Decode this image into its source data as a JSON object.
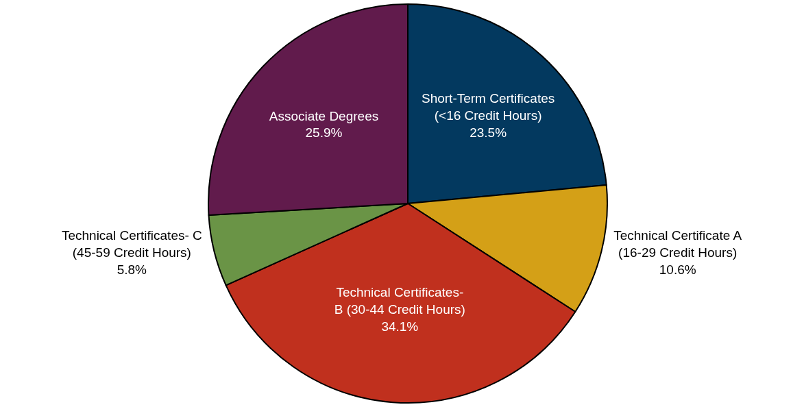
{
  "chart_data": {
    "type": "pie",
    "categories": [
      "Short-Term Certificates\n(<16 Credit Hours)",
      "Technical Certificate A\n(16-29 Credit Hours)",
      "Technical Certificates-\nB (30-44 Credit Hours)",
      "Technical Certificates- C\n(45-59 Credit Hours)",
      "Associate Degrees"
    ],
    "values": [
      23.5,
      10.6,
      34.1,
      5.8,
      25.9
    ],
    "value_labels": [
      "23.5%",
      "10.6%",
      "34.1%",
      "5.8%",
      "25.9%"
    ],
    "colors": [
      "#03395f",
      "#d4a017",
      "#c0301e",
      "#6a9446",
      "#611b4c"
    ],
    "legend": false
  }
}
